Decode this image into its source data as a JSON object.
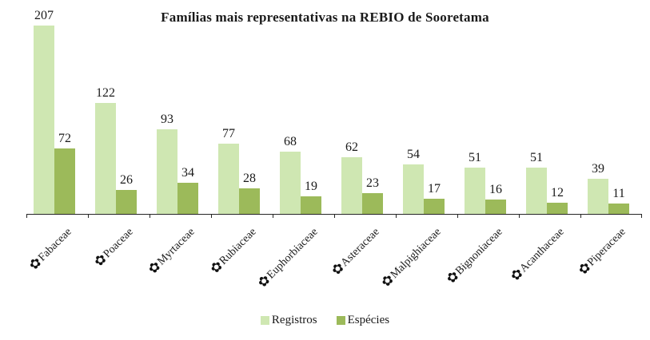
{
  "chart_data": {
    "type": "bar",
    "title": "Famílias mais representativas na REBIO de Sooretama",
    "categories": [
      "Fabaceae",
      "Poaceae",
      "Myrtaceae",
      "Rubiaceae",
      "Euphorbiaceae",
      "Asteraceae",
      "Malpighiaceae",
      "Bignoniaceae",
      "Acanthaceae",
      "Piperaceae"
    ],
    "series": [
      {
        "name": "Registros",
        "color": "#CFE7B2",
        "values": [
          207,
          122,
          93,
          77,
          68,
          62,
          54,
          51,
          51,
          39
        ]
      },
      {
        "name": "Espécies",
        "color": "#9CBA5A",
        "values": [
          72,
          26,
          34,
          28,
          19,
          23,
          17,
          16,
          12,
          11
        ]
      }
    ],
    "ylim": [
      0,
      207
    ],
    "xlabel": "",
    "ylabel": "",
    "grid": false,
    "legend_position": "bottom",
    "axis_color": "#262626",
    "value_labels": true,
    "icons": {
      "flower": "✿"
    }
  }
}
